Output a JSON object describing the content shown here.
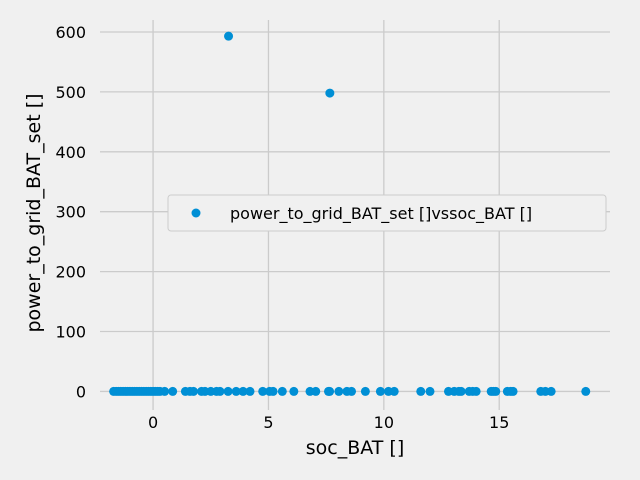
{
  "chart_data": {
    "type": "scatter",
    "title": "",
    "xlabel": "soc_BAT []",
    "ylabel": "power_to_grid_BAT_set []",
    "xlim": [
      -2.3,
      19.8
    ],
    "ylim": [
      -31,
      620
    ],
    "xticks": [
      0,
      5,
      10,
      15
    ],
    "yticks": [
      0,
      100,
      200,
      300,
      400,
      500,
      600
    ],
    "grid": true,
    "legend_position": "center-right",
    "series": [
      {
        "name": "power_to_grid_BAT_set []vssoc_BAT []",
        "color": "#008fd5",
        "x": [
          3.27,
          7.66,
          -1.71,
          -1.6,
          -1.5,
          -1.4,
          -1.3,
          -1.2,
          -1.1,
          -1.0,
          -0.9,
          -0.8,
          -0.7,
          -0.6,
          -0.5,
          -0.4,
          -0.3,
          -0.2,
          -0.1,
          0.0,
          0.1,
          0.2,
          0.3,
          0.5,
          0.85,
          1.4,
          1.6,
          1.75,
          2.1,
          2.25,
          2.5,
          2.75,
          2.9,
          3.25,
          3.6,
          3.9,
          4.2,
          4.75,
          5.05,
          5.2,
          5.6,
          6.1,
          6.8,
          7.05,
          7.6,
          7.65,
          8.05,
          8.4,
          8.6,
          9.2,
          9.85,
          10.2,
          10.45,
          11.6,
          12.0,
          12.8,
          13.05,
          13.25,
          13.35,
          13.7,
          13.85,
          14.0,
          14.65,
          14.75,
          14.85,
          15.35,
          15.5,
          15.6,
          16.8,
          17.0,
          17.25,
          18.75
        ],
        "y": [
          593,
          498,
          0,
          0,
          0,
          0,
          0,
          0,
          0,
          0,
          0,
          0,
          0,
          0,
          0,
          0,
          0,
          0,
          0,
          0,
          0,
          0,
          0,
          0,
          0,
          0,
          0,
          0,
          0,
          0,
          0,
          0,
          0,
          0,
          0,
          0,
          0,
          0,
          0,
          0,
          0,
          0,
          0,
          0,
          0,
          0,
          0,
          0,
          0,
          0,
          0,
          0,
          0,
          0,
          0,
          0,
          0,
          0,
          0,
          0,
          0,
          0,
          0,
          0,
          0,
          0,
          0,
          0,
          0,
          0,
          0,
          0
        ]
      }
    ]
  }
}
